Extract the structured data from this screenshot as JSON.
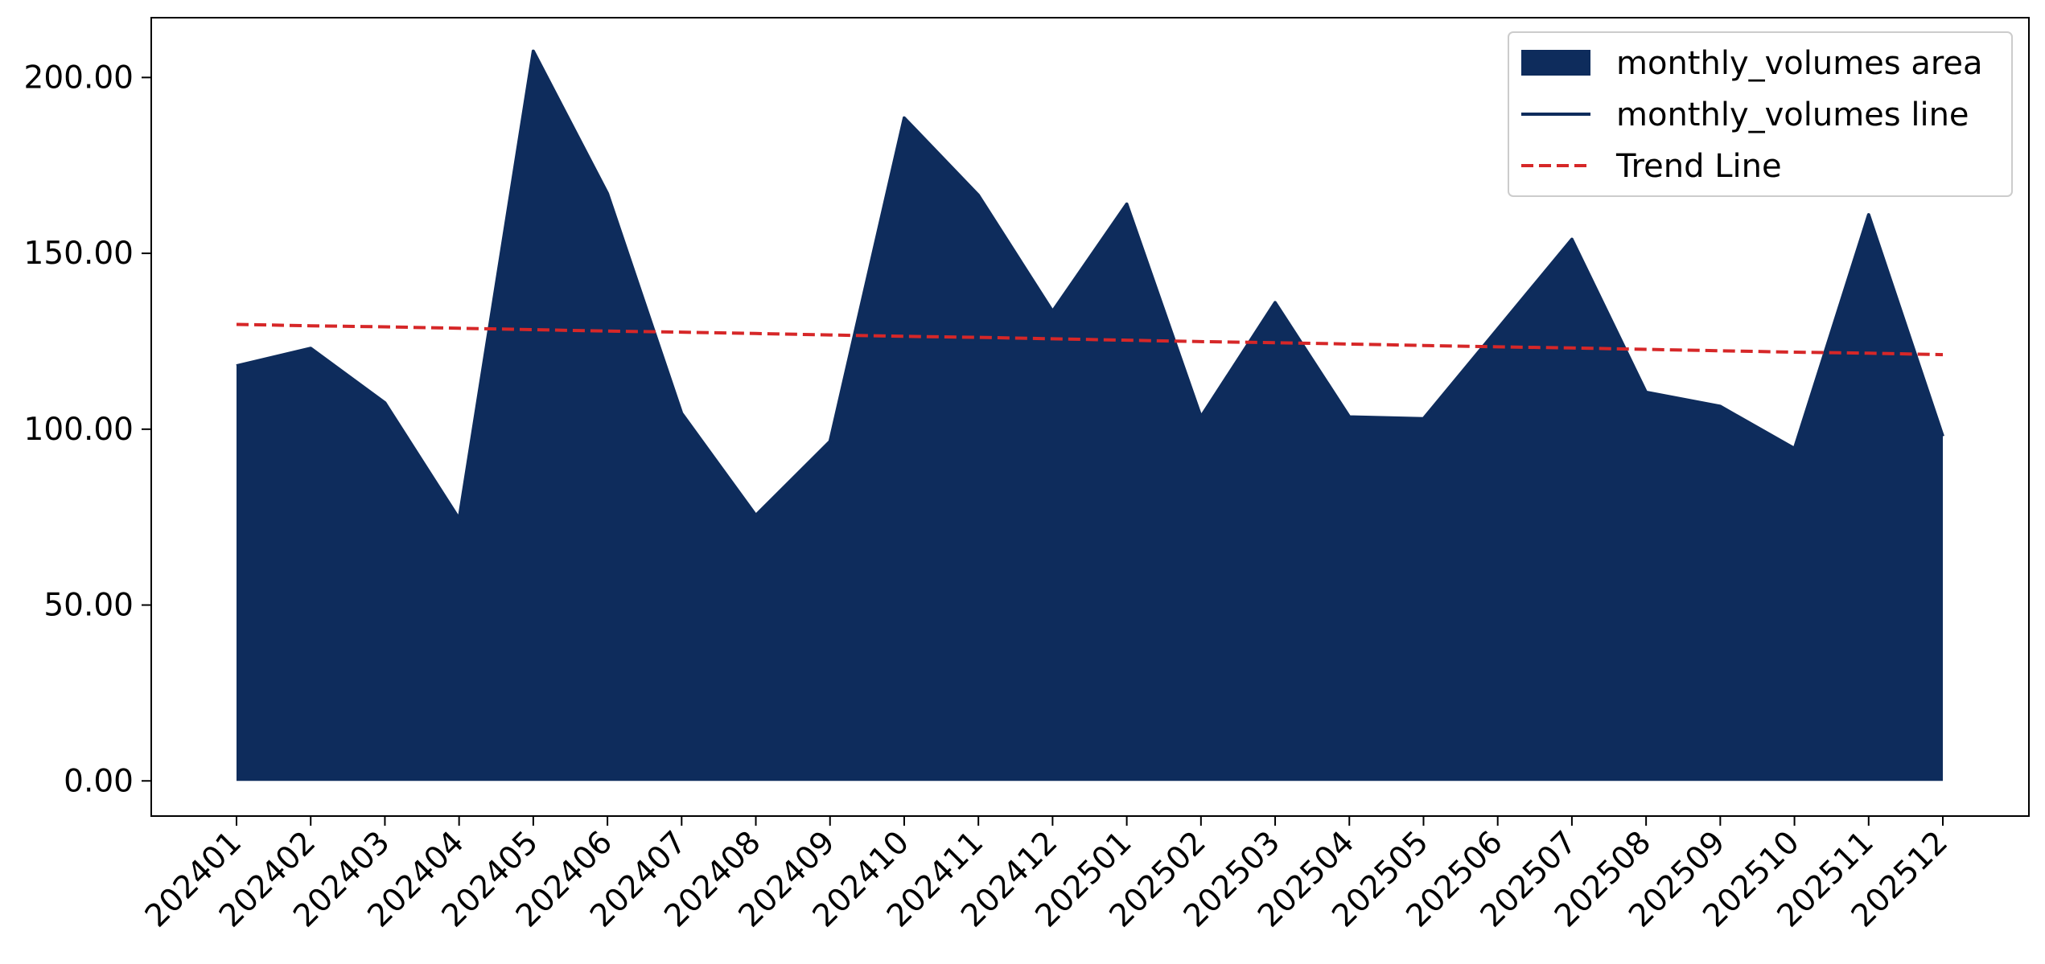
{
  "chart_data": {
    "type": "area",
    "title": "",
    "xlabel": "",
    "ylabel": "",
    "categories": [
      "202401",
      "202402",
      "202403",
      "202404",
      "202405",
      "202406",
      "202407",
      "202408",
      "202409",
      "202410",
      "202411",
      "202412",
      "202501",
      "202502",
      "202503",
      "202504",
      "202505",
      "202506",
      "202507",
      "202508",
      "202509",
      "202510",
      "202511",
      "202512"
    ],
    "series": [
      {
        "name": "monthly_volumes area",
        "kind": "area",
        "color": "#0e2c5c",
        "values": [
          118,
          123,
          107.5,
          74.5,
          207.5,
          167,
          104.5,
          75.5,
          96.5,
          188.5,
          166.5,
          133.5,
          164,
          103.5,
          136,
          103.5,
          103,
          128.5,
          154,
          110.5,
          106.5,
          94.5,
          161,
          98
        ]
      },
      {
        "name": "monthly_volumes line",
        "kind": "line",
        "color": "#0e2c5c",
        "values": [
          118,
          123,
          107.5,
          74.5,
          207.5,
          167,
          104.5,
          75.5,
          96.5,
          188.5,
          166.5,
          133.5,
          164,
          103.5,
          136,
          103.5,
          103,
          128.5,
          154,
          110.5,
          106.5,
          94.5,
          161,
          98
        ]
      },
      {
        "name": "Trend Line",
        "kind": "line-dashed",
        "color": "#d62728",
        "values": [
          129.8,
          129.4,
          129.1,
          128.7,
          128.3,
          127.9,
          127.6,
          127.2,
          126.8,
          126.4,
          126.1,
          125.7,
          125.3,
          124.9,
          124.6,
          124.2,
          123.8,
          123.4,
          123.1,
          122.7,
          122.3,
          121.9,
          121.6,
          121.2
        ]
      }
    ],
    "yticks": [
      "0.00",
      "50.00",
      "100.00",
      "150.00",
      "200.00"
    ],
    "ytick_values": [
      0,
      50,
      100,
      150,
      200
    ],
    "ylim": [
      -10,
      217
    ],
    "grid": false,
    "legend": {
      "position": "top-right",
      "entries": [
        "monthly_volumes area",
        "monthly_volumes line",
        "Trend Line"
      ]
    }
  }
}
